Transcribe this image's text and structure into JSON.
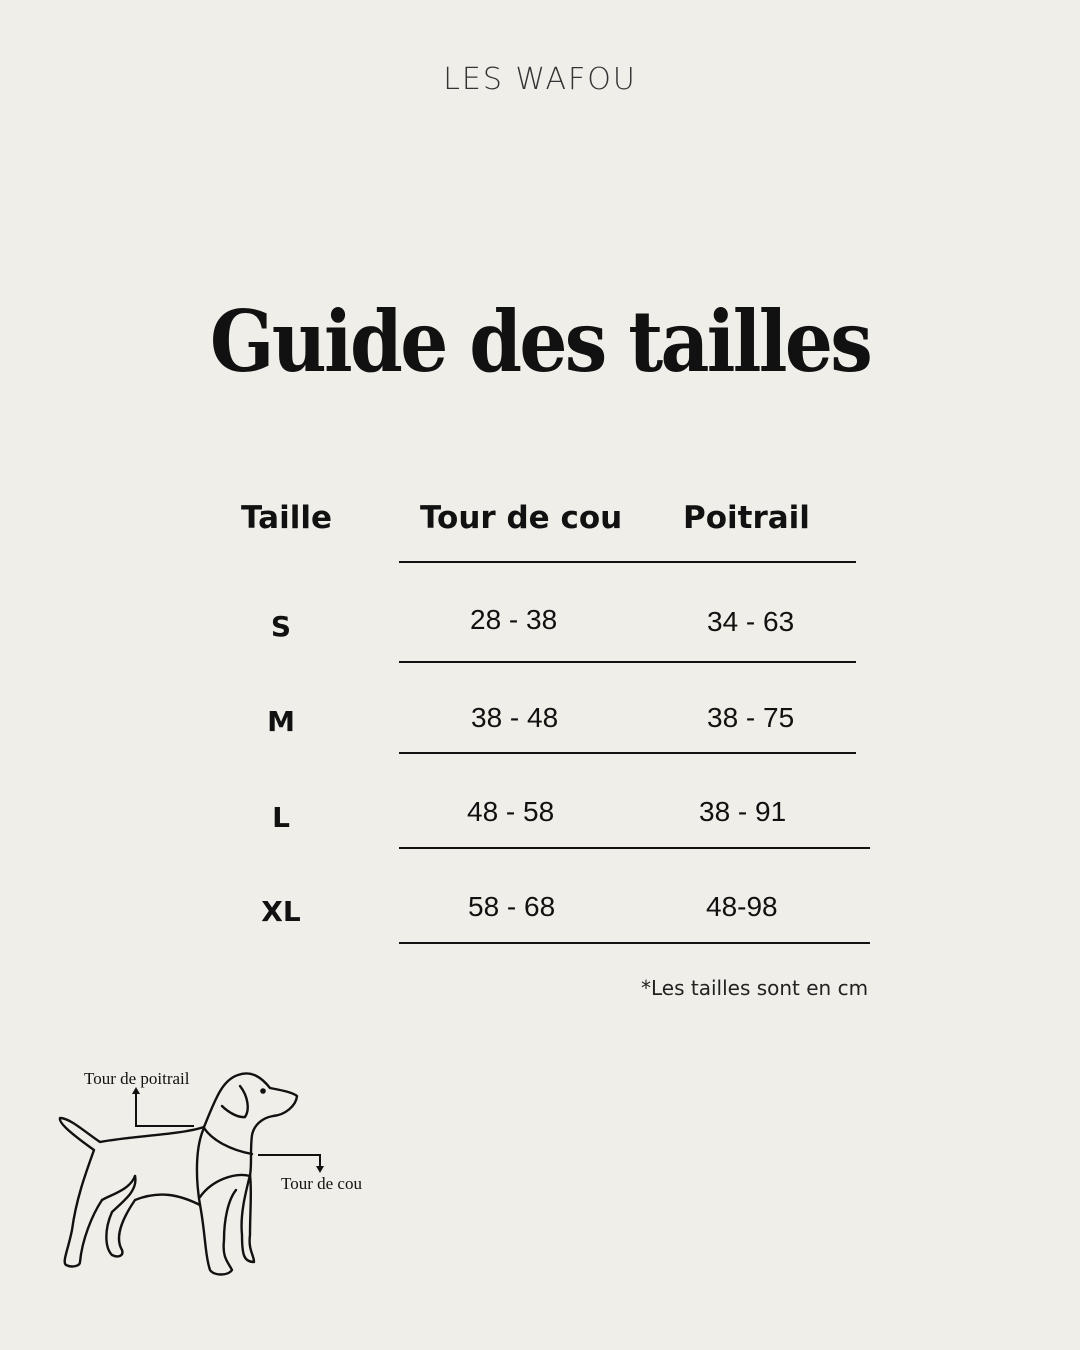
{
  "brand": "LES WAFOU",
  "title": "Guide des tailles",
  "table": {
    "headers": [
      "Taille",
      "Tour de cou",
      "Poitrail"
    ],
    "rows": [
      {
        "size": "S",
        "neck": "28 - 38",
        "chest": "34 - 63"
      },
      {
        "size": "M",
        "neck": "38 - 48",
        "chest": "38 - 75"
      },
      {
        "size": "L",
        "neck": "48 - 58",
        "chest": "38 - 91"
      },
      {
        "size": "XL",
        "neck": "58 - 68",
        "chest": "48-98"
      }
    ]
  },
  "note": "*Les tailles sont en cm",
  "illustration": {
    "chest_label": "Tour de poitrail",
    "neck_label": "Tour de cou",
    "icon": "dog-outline-icon"
  }
}
